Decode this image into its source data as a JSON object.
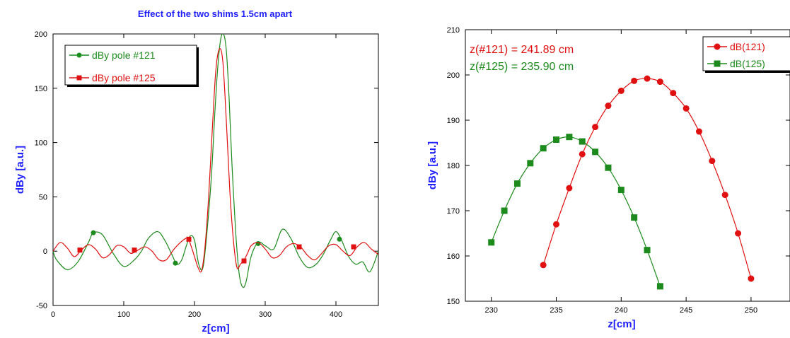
{
  "colors": {
    "green": "#1c8a1c",
    "red": "#e01010",
    "axis_label": "#2020ff"
  },
  "chart_data": [
    {
      "type": "line",
      "title": "Effect of the two shims 1.5cm apart",
      "xlabel": "z[cm]",
      "ylabel": "dBy [a.u.]",
      "xlim": [
        0,
        460
      ],
      "ylim": [
        -50,
        200
      ],
      "xticks": [
        0,
        100,
        200,
        300,
        400
      ],
      "yticks": [
        -50,
        0,
        50,
        100,
        150,
        200
      ],
      "legend_position": "top-left",
      "series": [
        {
          "name": "dBy pole #121",
          "color": "#1c8a1c",
          "marker": "circle",
          "x": [
            0,
            5,
            20,
            35,
            50,
            57,
            70,
            85,
            100,
            115,
            125,
            135,
            148,
            158,
            168,
            175,
            182,
            188,
            194,
            200,
            206,
            212,
            218,
            224,
            229,
            233,
            237,
            241,
            245,
            249,
            253,
            258,
            263,
            268,
            273,
            280,
            290,
            300,
            312,
            324,
            336,
            348,
            360,
            372,
            382,
            392,
            400,
            408,
            418,
            428,
            438,
            448,
            460
          ],
          "y": [
            0,
            -8,
            -17,
            -10,
            8,
            17,
            15,
            -2,
            -14,
            -8,
            0,
            12,
            18,
            10,
            -3,
            -12,
            -8,
            4,
            14,
            10,
            -12,
            -15,
            20,
            70,
            130,
            170,
            195,
            200,
            185,
            140,
            80,
            20,
            -20,
            -33,
            -28,
            -5,
            8,
            5,
            2,
            20,
            12,
            -5,
            -15,
            -12,
            -3,
            10,
            18,
            10,
            -5,
            -12,
            -10,
            -19,
            0
          ],
          "markers": [
            [
              57,
              17
            ],
            [
              173,
              -11
            ],
            [
              290,
              7
            ],
            [
              405,
              11
            ]
          ]
        },
        {
          "name": "dBy pole #125",
          "color": "#e01010",
          "marker": "square",
          "x": [
            0,
            10,
            20,
            30,
            40,
            50,
            60,
            70,
            80,
            90,
            100,
            110,
            120,
            130,
            140,
            150,
            160,
            170,
            180,
            190,
            195,
            200,
            205,
            210,
            215,
            220,
            225,
            230,
            235,
            240,
            245,
            250,
            255,
            260,
            265,
            270,
            275,
            280,
            290,
            300,
            310,
            320,
            330,
            340,
            350,
            360,
            370,
            380,
            390,
            400,
            410,
            420,
            430,
            440,
            450,
            460
          ],
          "y": [
            0,
            8,
            3,
            -5,
            1,
            6,
            2,
            -6,
            -3,
            5,
            4,
            -2,
            1,
            4,
            0,
            -8,
            -8,
            1,
            8,
            12,
            5,
            -5,
            -15,
            -18,
            5,
            50,
            110,
            165,
            186,
            175,
            120,
            55,
            10,
            -15,
            -12,
            -8,
            -2,
            5,
            8,
            2,
            -6,
            -4,
            4,
            7,
            4,
            -4,
            -8,
            -2,
            5,
            6,
            0,
            -4,
            4,
            8,
            2,
            -3
          ],
          "markers": [
            [
              38,
              1
            ],
            [
              115,
              1
            ],
            [
              192,
              11
            ],
            [
              270,
              -9
            ],
            [
              348,
              4
            ],
            [
              425,
              4
            ]
          ]
        }
      ]
    },
    {
      "type": "line",
      "title": "",
      "xlabel": "z[cm]",
      "ylabel": "dBy [a.u.]",
      "xlim": [
        228,
        253
      ],
      "ylim": [
        150,
        210
      ],
      "xticks": [
        230,
        235,
        240,
        245,
        250
      ],
      "yticks": [
        150,
        160,
        170,
        180,
        190,
        200,
        210
      ],
      "legend_position": "top-right",
      "annotations": [
        {
          "text": "z(#121) = 241.89 cm",
          "color": "#e01010"
        },
        {
          "text": "z(#125) = 235.90 cm",
          "color": "#1c8a1c"
        }
      ],
      "series": [
        {
          "name": "dB(121)",
          "color": "#e01010",
          "marker": "circle",
          "x": [
            234,
            235,
            236,
            237,
            238,
            239,
            240,
            241,
            242,
            243,
            244,
            245,
            246,
            247,
            248,
            249,
            250
          ],
          "y": [
            158,
            167,
            175,
            182.5,
            188.5,
            193.2,
            196.5,
            198.7,
            199.2,
            198.5,
            196,
            192.6,
            187.5,
            181,
            173.5,
            165,
            155
          ]
        },
        {
          "name": "dB(125)",
          "color": "#1c8a1c",
          "marker": "square",
          "x": [
            230,
            231,
            232,
            233,
            234,
            235,
            236,
            237,
            238,
            239,
            240,
            241,
            242,
            243
          ],
          "y": [
            163,
            170,
            176,
            180.5,
            183.8,
            185.7,
            186.3,
            185.3,
            183,
            179.5,
            174.6,
            168.5,
            161.3,
            153.3
          ]
        }
      ]
    }
  ]
}
